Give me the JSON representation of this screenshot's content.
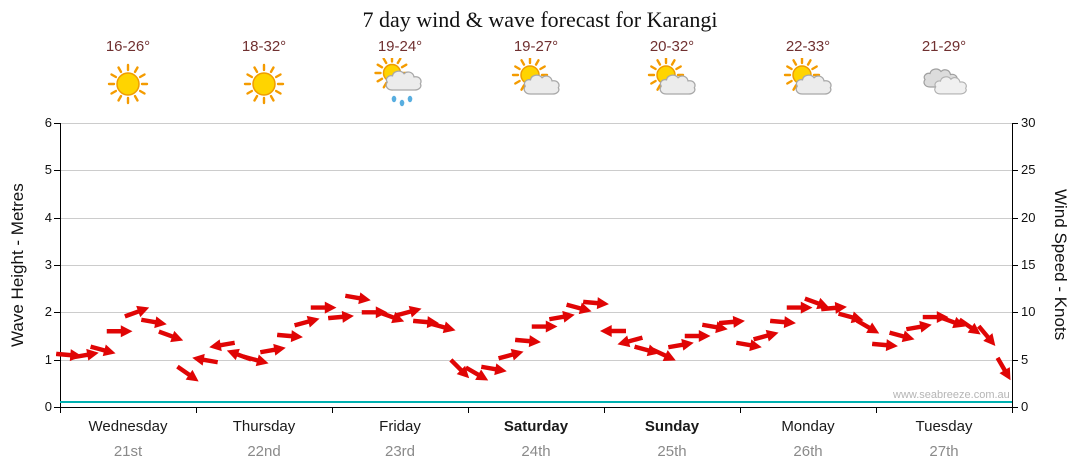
{
  "title": "7 day wind & wave forecast for Karangi",
  "watermark": "www.seabreeze.com.au",
  "colors": {
    "arrow": "#e00505",
    "arrow_outline": "#7a0000",
    "wave_line": "#00b0b0",
    "grid": "#cccccc",
    "axis": "#000000",
    "temperature_text": "#703030",
    "date_text": "#8a8a8a",
    "watermark_text": "#b5b5b5"
  },
  "header_days": [
    {
      "temp": "16-26°",
      "icon": "sunny"
    },
    {
      "temp": "18-32°",
      "icon": "sunny"
    },
    {
      "temp": "19-24°",
      "icon": "sun-showers"
    },
    {
      "temp": "19-27°",
      "icon": "partly-cloudy"
    },
    {
      "temp": "20-32°",
      "icon": "partly-cloudy"
    },
    {
      "temp": "22-33°",
      "icon": "partly-cloudy"
    },
    {
      "temp": "21-29°",
      "icon": "cloudy"
    }
  ],
  "axes": {
    "left_label": "Wave Height - Metres",
    "right_label": "Wind Speed - Knots",
    "left_ticks": [
      0,
      1,
      2,
      3,
      4,
      5,
      6
    ],
    "right_ticks": [
      0,
      5,
      10,
      15,
      20,
      25,
      30
    ],
    "left_range": [
      0,
      6
    ],
    "right_range": [
      0,
      30
    ]
  },
  "x_days": [
    {
      "name": "Wednesday",
      "date": "21st",
      "bold": false
    },
    {
      "name": "Thursday",
      "date": "22nd",
      "bold": false
    },
    {
      "name": "Friday",
      "date": "23rd",
      "bold": false
    },
    {
      "name": "Saturday",
      "date": "24th",
      "bold": true
    },
    {
      "name": "Sunday",
      "date": "25th",
      "bold": true
    },
    {
      "name": "Monday",
      "date": "26th",
      "bold": false
    },
    {
      "name": "Tuesday",
      "date": "27th",
      "bold": false
    }
  ],
  "chart_data": {
    "type": "line",
    "title": "7 day wind & wave forecast for Karangi",
    "x_unit": "3-hourly points across 7 days (8 per day)",
    "categories": [
      "Wednesday 21st",
      "Thursday 22nd",
      "Friday 23rd",
      "Saturday 24th",
      "Sunday 25th",
      "Monday 26th",
      "Tuesday 27th"
    ],
    "left_ylabel": "Wave Height - Metres",
    "right_ylabel": "Wind Speed - Knots",
    "left_ylim": [
      0,
      6
    ],
    "right_ylim": [
      0,
      30
    ],
    "grid": "horizontal",
    "legend": "none",
    "series": [
      {
        "name": "Wind Speed",
        "units": "knots",
        "axis": "right",
        "marker": "red-direction-arrows",
        "values": [
          5.5,
          5.5,
          6,
          8,
          10,
          9,
          7.5,
          3.5,
          5,
          6.5,
          5.5,
          5,
          6,
          7.5,
          9,
          10.5,
          9.5,
          11.5,
          10,
          9.5,
          10,
          9,
          8.5,
          4,
          3.5,
          4,
          5.5,
          7,
          8.5,
          9.5,
          10.5,
          11,
          8,
          7,
          6,
          5.5,
          6.5,
          7.5,
          8.5,
          9,
          6.5,
          7.5,
          9,
          10.5,
          11,
          10.5,
          9.5,
          8.5,
          6.5,
          7.5,
          8.5,
          9.5,
          9,
          8.5,
          7.5,
          4
        ]
      },
      {
        "name": "Wind Direction",
        "units": "degrees of arrow rotation (0 = pointing right, clockwise positive)",
        "values": [
          5,
          -10,
          15,
          0,
          -20,
          10,
          20,
          35,
          190,
          170,
          200,
          15,
          -10,
          5,
          -15,
          0,
          -5,
          10,
          0,
          20,
          -15,
          5,
          15,
          45,
          30,
          10,
          -15,
          5,
          0,
          -10,
          15,
          5,
          180,
          165,
          15,
          25,
          -10,
          0,
          10,
          -5,
          10,
          -15,
          5,
          0,
          20,
          -5,
          15,
          30,
          5,
          15,
          -10,
          0,
          20,
          35,
          50,
          60
        ]
      },
      {
        "name": "Wave Height",
        "units": "metres",
        "axis": "left",
        "constant_value": 0.1,
        "note": "flat teal line just above the bottom axis"
      }
    ]
  }
}
